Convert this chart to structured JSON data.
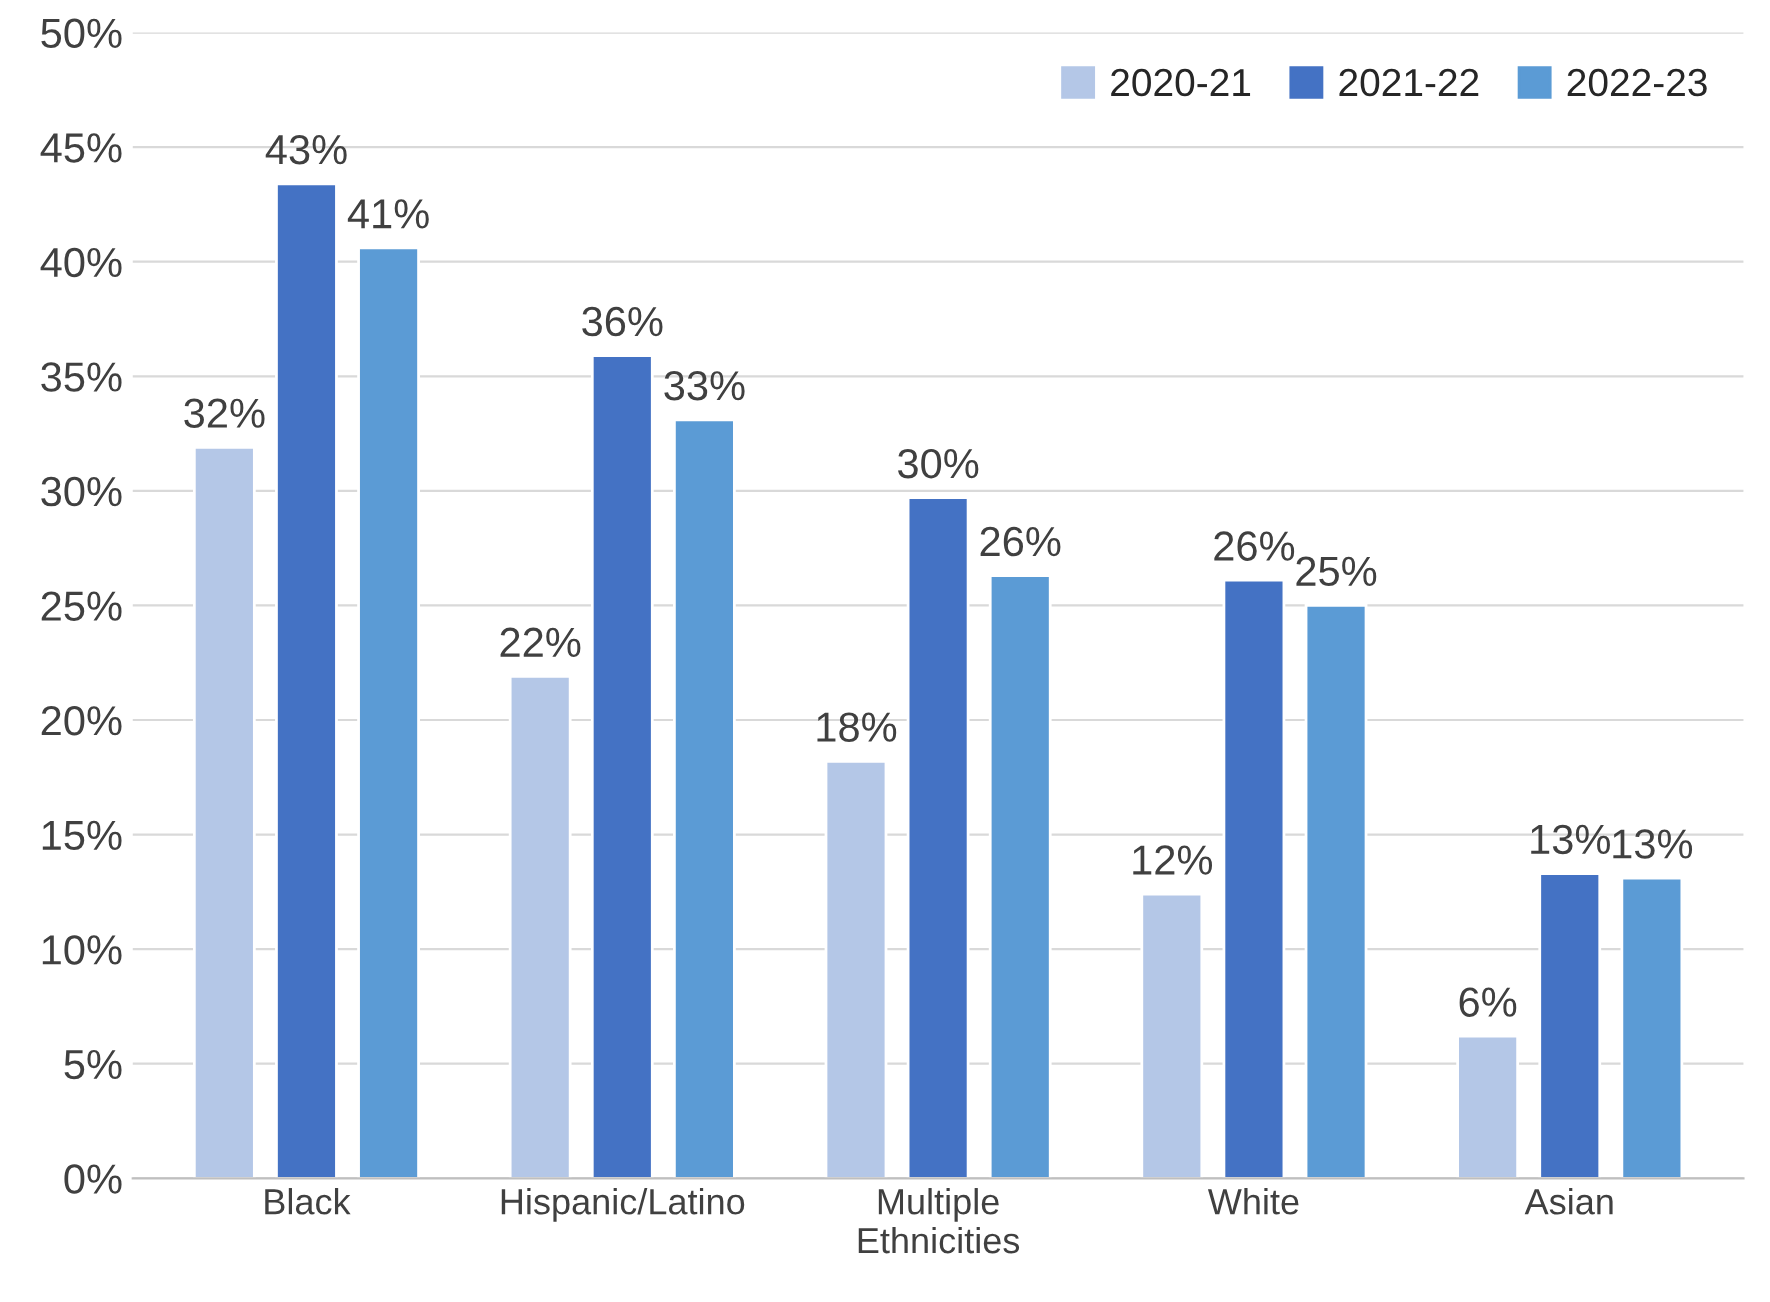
{
  "chart_data": {
    "type": "bar",
    "categories": [
      "Black",
      "Hispanic/Latino",
      "Multiple\nEthnicities",
      "White",
      "Asian"
    ],
    "series": [
      {
        "name": "2020-21",
        "color": "#b4c7e7",
        "values": [
          31.9,
          21.9,
          18.2,
          12.4,
          6.2
        ],
        "value_labels": [
          "32%",
          "22%",
          "18%",
          "12%",
          "6%"
        ]
      },
      {
        "name": "2021-22",
        "color": "#4472c4",
        "values": [
          43.4,
          35.9,
          29.7,
          26.1,
          13.3
        ],
        "value_labels": [
          "43%",
          "36%",
          "30%",
          "26%",
          "13%"
        ]
      },
      {
        "name": "2022-23",
        "color": "#5b9bd5",
        "values": [
          40.6,
          33.1,
          26.3,
          25.0,
          13.1
        ],
        "value_labels": [
          "41%",
          "33%",
          "26%",
          "25%",
          "13%"
        ]
      }
    ],
    "ylim": [
      0,
      50
    ],
    "yticks": [
      {
        "value": 0,
        "label": "0%"
      },
      {
        "value": 5,
        "label": "5%"
      },
      {
        "value": 10,
        "label": "10%"
      },
      {
        "value": 15,
        "label": "15%"
      },
      {
        "value": 20,
        "label": "20%"
      },
      {
        "value": 25,
        "label": "25%"
      },
      {
        "value": 30,
        "label": "30%"
      },
      {
        "value": 35,
        "label": "35%"
      },
      {
        "value": 40,
        "label": "40%"
      },
      {
        "value": 45,
        "label": "45%"
      },
      {
        "value": 50,
        "label": "50%"
      }
    ],
    "grid": "y",
    "legend": "top right"
  }
}
